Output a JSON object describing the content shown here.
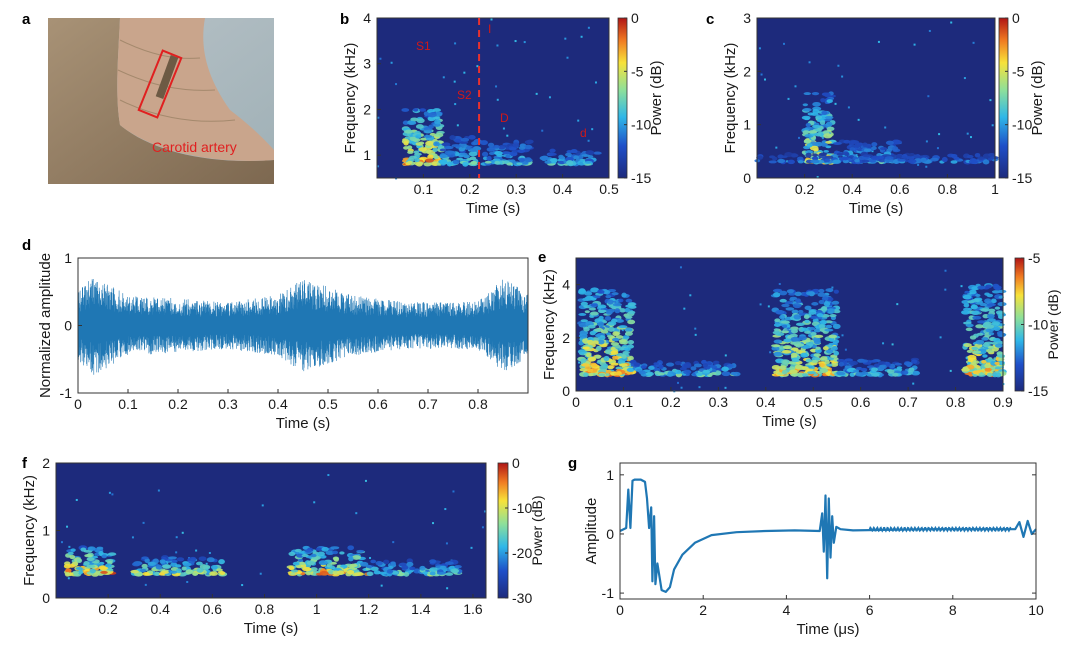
{
  "panels": {
    "a": {
      "label": "a",
      "annotation": "Carotid artery"
    },
    "b": {
      "label": "b",
      "annotations": [
        "S1",
        "S2",
        "I",
        "D",
        "d"
      ]
    },
    "c": {
      "label": "c"
    },
    "d": {
      "label": "d"
    },
    "e": {
      "label": "e"
    },
    "f": {
      "label": "f"
    },
    "g": {
      "label": "g"
    }
  },
  "colors": {
    "background": "#1d2a7c",
    "waveform": "#1f77b4",
    "marker_line": "#e8312e"
  },
  "chart_data": [
    {
      "id": "b",
      "type": "heatmap",
      "xlabel": "Time (s)",
      "ylabel": "Frequency (kHz)",
      "colorbar_label": "Power (dB)",
      "xlim": [
        0,
        0.5
      ],
      "ylim": [
        0.5,
        4
      ],
      "xticks": [
        "0.1",
        "0.2",
        "0.3",
        "0.4",
        "0.5"
      ],
      "yticks": [
        "1",
        "2",
        "3",
        "4"
      ],
      "colorbar_ticks": [
        "0",
        "-5",
        "-10",
        "-15"
      ],
      "crange": [
        -15,
        0
      ],
      "marker_time": 0.22,
      "blobs": [
        {
          "x0": 0.06,
          "x1": 0.14,
          "y0": 0.8,
          "y1": 2.0,
          "p": 0.95
        },
        {
          "x0": 0.14,
          "x1": 0.22,
          "y0": 0.8,
          "y1": 1.4,
          "p": 0.55
        },
        {
          "x0": 0.23,
          "x1": 0.33,
          "y0": 0.8,
          "y1": 1.3,
          "p": 0.55
        },
        {
          "x0": 0.36,
          "x1": 0.48,
          "y0": 0.8,
          "y1": 1.1,
          "p": 0.5
        }
      ]
    },
    {
      "id": "c",
      "type": "heatmap",
      "xlabel": "Time (s)",
      "ylabel": "Frequency (kHz)",
      "colorbar_label": "Power (dB)",
      "xlim": [
        0,
        1
      ],
      "ylim": [
        0,
        3
      ],
      "xticks": [
        "0.2",
        "0.4",
        "0.6",
        "0.8",
        "1"
      ],
      "yticks": [
        "0",
        "1",
        "2",
        "3"
      ],
      "colorbar_ticks": [
        "0",
        "-5",
        "-10",
        "-15"
      ],
      "crange": [
        -15,
        0
      ],
      "blobs": [
        {
          "x0": 0.2,
          "x1": 0.32,
          "y0": 0.3,
          "y1": 1.6,
          "p": 0.8
        },
        {
          "x0": 0.32,
          "x1": 0.6,
          "y0": 0.3,
          "y1": 0.7,
          "p": 0.5
        },
        {
          "x0": 0.0,
          "x1": 1.0,
          "y0": 0.3,
          "y1": 0.45,
          "p": 0.35
        }
      ]
    },
    {
      "id": "d",
      "type": "line",
      "xlabel": "Time (s)",
      "ylabel": "Normalized amplitude",
      "xlim": [
        0,
        0.9
      ],
      "ylim": [
        -1,
        1
      ],
      "xticks": [
        "0",
        "0.1",
        "0.2",
        "0.3",
        "0.4",
        "0.5",
        "0.6",
        "0.7",
        "0.8"
      ],
      "yticks": [
        "-1",
        "0",
        "1"
      ],
      "envelope": [
        {
          "x": 0.0,
          "amp": 0.5
        },
        {
          "x": 0.03,
          "amp": 0.75
        },
        {
          "x": 0.1,
          "amp": 0.45
        },
        {
          "x": 0.2,
          "amp": 0.4
        },
        {
          "x": 0.3,
          "amp": 0.35
        },
        {
          "x": 0.4,
          "amp": 0.45
        },
        {
          "x": 0.45,
          "amp": 0.7
        },
        {
          "x": 0.55,
          "amp": 0.45
        },
        {
          "x": 0.65,
          "amp": 0.35
        },
        {
          "x": 0.8,
          "amp": 0.35
        },
        {
          "x": 0.85,
          "amp": 0.7
        },
        {
          "x": 0.9,
          "amp": 0.5
        }
      ]
    },
    {
      "id": "e",
      "type": "heatmap",
      "xlabel": "Time (s)",
      "ylabel": "Frequency (kHz)",
      "colorbar_label": "Power (dB)",
      "xlim": [
        0,
        0.9
      ],
      "ylim": [
        0,
        5
      ],
      "xticks": [
        "0",
        "0.1",
        "0.2",
        "0.3",
        "0.4",
        "0.5",
        "0.6",
        "0.7",
        "0.8",
        "0.9"
      ],
      "yticks": [
        "0",
        "2",
        "4"
      ],
      "colorbar_ticks": [
        "-5",
        "-10",
        "-15"
      ],
      "crange": [
        -15,
        -5
      ],
      "blobs": [
        {
          "x0": 0.01,
          "x1": 0.12,
          "y0": 0.6,
          "y1": 3.8,
          "p": 0.9
        },
        {
          "x0": 0.12,
          "x1": 0.34,
          "y0": 0.6,
          "y1": 1.1,
          "p": 0.55
        },
        {
          "x0": 0.42,
          "x1": 0.55,
          "y0": 0.6,
          "y1": 3.8,
          "p": 0.85
        },
        {
          "x0": 0.55,
          "x1": 0.72,
          "y0": 0.6,
          "y1": 1.2,
          "p": 0.55
        },
        {
          "x0": 0.82,
          "x1": 0.9,
          "y0": 0.6,
          "y1": 4.0,
          "p": 0.85
        }
      ]
    },
    {
      "id": "f",
      "type": "heatmap",
      "xlabel": "Time (s)",
      "ylabel": "Frequency (kHz)",
      "colorbar_label": "Power (dB)",
      "xlim": [
        0,
        1.65
      ],
      "ylim": [
        0,
        2
      ],
      "xticks": [
        "0.2",
        "0.4",
        "0.6",
        "0.8",
        "1",
        "1.2",
        "1.4",
        "1.6"
      ],
      "yticks": [
        "0",
        "1",
        "2"
      ],
      "colorbar_ticks": [
        "0",
        "-10",
        "-20",
        "-30"
      ],
      "crange": [
        -30,
        0
      ],
      "blobs": [
        {
          "x0": 0.04,
          "x1": 0.22,
          "y0": 0.35,
          "y1": 0.75,
          "p": 0.95
        },
        {
          "x0": 0.3,
          "x1": 0.64,
          "y0": 0.35,
          "y1": 0.6,
          "p": 0.75
        },
        {
          "x0": 0.9,
          "x1": 1.2,
          "y0": 0.35,
          "y1": 0.75,
          "p": 0.9
        },
        {
          "x0": 1.2,
          "x1": 1.55,
          "y0": 0.35,
          "y1": 0.55,
          "p": 0.6
        }
      ]
    },
    {
      "id": "g",
      "type": "line",
      "xlabel": "Time (μs)",
      "ylabel": "Amplitude",
      "xlim": [
        0,
        10
      ],
      "ylim": [
        -1.1,
        1.2
      ],
      "xticks": [
        "0",
        "2",
        "4",
        "6",
        "8",
        "10"
      ],
      "yticks": [
        "-1",
        "0",
        "1"
      ],
      "x": [
        0,
        0.15,
        0.2,
        0.25,
        0.3,
        0.35,
        0.5,
        0.6,
        0.65,
        0.7,
        0.75,
        0.78,
        0.82,
        0.85,
        0.9,
        1.0,
        1.1,
        1.2,
        1.3,
        1.5,
        1.8,
        2.2,
        2.8,
        3.5,
        4.2,
        4.8,
        4.86,
        4.9,
        4.94,
        4.98,
        5.02,
        5.06,
        5.1,
        5.14,
        5.2,
        5.3,
        5.6,
        6.5,
        7.5,
        8.5,
        9.5,
        9.6,
        9.7,
        9.8,
        9.9,
        10
      ],
      "y": [
        0.05,
        0.1,
        0.75,
        0.1,
        0.9,
        0.92,
        0.92,
        0.88,
        0.6,
        0.1,
        0.45,
        -0.8,
        0.3,
        -0.85,
        -0.5,
        -0.95,
        -0.98,
        -0.9,
        -0.6,
        -0.35,
        -0.15,
        -0.02,
        0.03,
        0.05,
        0.06,
        0.05,
        0.35,
        -0.3,
        0.65,
        -0.75,
        0.6,
        -0.4,
        0.3,
        -0.15,
        0.12,
        0.08,
        0.06,
        0.07,
        0.08,
        0.08,
        0.08,
        0.2,
        -0.05,
        0.22,
        0.0,
        0.08
      ]
    }
  ]
}
